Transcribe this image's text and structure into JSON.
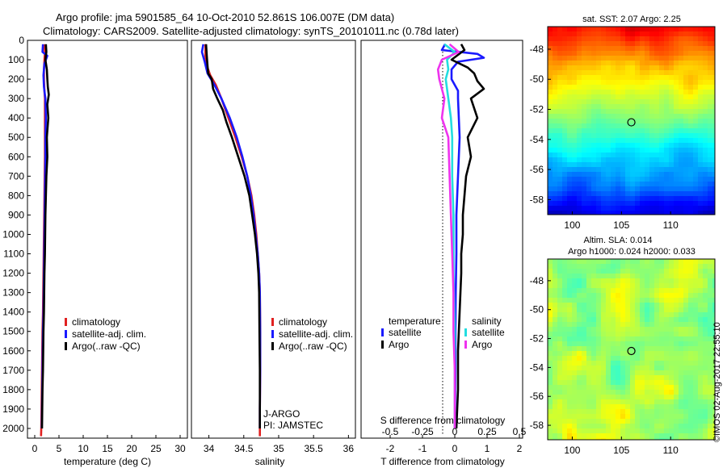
{
  "header": {
    "title_line1": "Argo profile: jma 5901585_64 10-Oct-2010 52.861S 106.007E (DM data)",
    "title_line2": "Climatology: CARS2009. Satellite-adjusted climatology: synTS_20101011.nc (0.78d later)"
  },
  "colors": {
    "climatology": "#e02020",
    "satellite": "#1a1aff",
    "argo": "#000000",
    "salinity_satellite": "#22dde0",
    "salinity_argo": "#ee33ee"
  },
  "depth_axis": {
    "range": [
      0,
      2050
    ],
    "ticks": [
      "0",
      "100",
      "200",
      "300",
      "400",
      "500",
      "600",
      "700",
      "800",
      "900",
      "1000",
      "1100",
      "1200",
      "1300",
      "1400",
      "1500",
      "1600",
      "1700",
      "1800",
      "1900",
      "2000"
    ]
  },
  "chart_data": [
    {
      "type": "line",
      "name": "temperature",
      "xlabel": "temperature (deg C)",
      "xlim": [
        -1.5,
        31.5
      ],
      "xticks": [
        "0",
        "5",
        "10",
        "15",
        "20",
        "25",
        "30"
      ],
      "legend": [
        "climatology",
        "satellite-adj. clim.",
        "Argo(..raw -QC)"
      ],
      "series": [
        {
          "name": "climatology",
          "color": "#e02020",
          "points": [
            [
              2.0,
              20
            ],
            [
              2.1,
              60
            ],
            [
              2.0,
              100
            ],
            [
              1.9,
              150
            ],
            [
              1.9,
              200
            ],
            [
              2.0,
              260
            ],
            [
              2.1,
              300
            ],
            [
              2.1,
              400
            ],
            [
              2.1,
              500
            ],
            [
              2.1,
              600
            ],
            [
              2.05,
              700
            ],
            [
              2.0,
              800
            ],
            [
              1.95,
              900
            ],
            [
              1.9,
              1000
            ],
            [
              1.85,
              1100
            ],
            [
              1.8,
              1200
            ],
            [
              1.75,
              1300
            ],
            [
              1.7,
              1400
            ],
            [
              1.6,
              1500
            ],
            [
              1.55,
              1600
            ],
            [
              1.5,
              1700
            ],
            [
              1.45,
              1800
            ],
            [
              1.4,
              1900
            ],
            [
              1.35,
              2000
            ],
            [
              1.3,
              2040
            ]
          ]
        },
        {
          "name": "satellite-adj. clim.",
          "color": "#1a1aff",
          "points": [
            [
              1.7,
              20
            ],
            [
              1.6,
              60
            ],
            [
              2.6,
              80
            ],
            [
              2.0,
              120
            ],
            [
              1.8,
              180
            ],
            [
              1.9,
              240
            ],
            [
              2.2,
              300
            ],
            [
              2.3,
              400
            ],
            [
              2.2,
              500
            ],
            [
              2.2,
              600
            ],
            [
              2.15,
              700
            ],
            [
              2.1,
              800
            ],
            [
              2.05,
              900
            ],
            [
              2.0,
              1000
            ],
            [
              1.95,
              1100
            ],
            [
              1.9,
              1200
            ],
            [
              1.85,
              1300
            ],
            [
              1.8,
              1400
            ],
            [
              1.7,
              1500
            ],
            [
              1.65,
              1600
            ],
            [
              1.6,
              1700
            ],
            [
              1.55,
              1800
            ],
            [
              1.5,
              1900
            ],
            [
              1.45,
              2000
            ]
          ]
        },
        {
          "name": "Argo(..raw -QC)",
          "color": "#000000",
          "points": [
            [
              2.3,
              20
            ],
            [
              2.4,
              60
            ],
            [
              2.2,
              100
            ],
            [
              2.5,
              150
            ],
            [
              2.6,
              200
            ],
            [
              2.7,
              240
            ],
            [
              2.9,
              280
            ],
            [
              2.6,
              330
            ],
            [
              2.8,
              400
            ],
            [
              2.5,
              500
            ],
            [
              2.6,
              600
            ],
            [
              2.4,
              700
            ],
            [
              2.3,
              800
            ],
            [
              2.2,
              900
            ],
            [
              2.15,
              1000
            ],
            [
              2.1,
              1100
            ],
            [
              2.0,
              1200
            ],
            [
              1.95,
              1300
            ],
            [
              1.9,
              1400
            ],
            [
              1.8,
              1500
            ],
            [
              1.75,
              1600
            ],
            [
              1.7,
              1700
            ],
            [
              1.6,
              1800
            ],
            [
              1.55,
              1900
            ],
            [
              1.5,
              2000
            ]
          ]
        }
      ]
    },
    {
      "type": "line",
      "name": "salinity",
      "xlabel": "salinity",
      "xlim": [
        33.75,
        36.1
      ],
      "xticks": [
        "34",
        "34.5",
        "35",
        "35.5",
        "36"
      ],
      "legend": [
        "climatology",
        "satellite-adj. clim.",
        "Argo(..raw -QC)"
      ],
      "annotation": [
        "J-ARGO",
        "PI: JAMSTEC"
      ],
      "series": [
        {
          "name": "climatology",
          "color": "#e02020",
          "points": [
            [
              33.95,
              20
            ],
            [
              33.95,
              80
            ],
            [
              33.97,
              130
            ],
            [
              34.02,
              180
            ],
            [
              34.1,
              230
            ],
            [
              34.18,
              300
            ],
            [
              34.28,
              400
            ],
            [
              34.38,
              500
            ],
            [
              34.47,
              600
            ],
            [
              34.55,
              700
            ],
            [
              34.61,
              800
            ],
            [
              34.65,
              900
            ],
            [
              34.68,
              1000
            ],
            [
              34.7,
              1100
            ],
            [
              34.72,
              1200
            ],
            [
              34.73,
              1300
            ],
            [
              34.735,
              1500
            ],
            [
              34.735,
              1700
            ],
            [
              34.73,
              1900
            ],
            [
              34.73,
              2040
            ]
          ]
        },
        {
          "name": "satellite-adj. clim.",
          "color": "#1a1aff",
          "points": [
            [
              33.92,
              20
            ],
            [
              33.9,
              60
            ],
            [
              33.94,
              110
            ],
            [
              33.98,
              170
            ],
            [
              34.08,
              230
            ],
            [
              34.18,
              300
            ],
            [
              34.3,
              400
            ],
            [
              34.4,
              500
            ],
            [
              34.48,
              600
            ],
            [
              34.55,
              700
            ],
            [
              34.6,
              800
            ],
            [
              34.64,
              900
            ],
            [
              34.67,
              1000
            ],
            [
              34.7,
              1100
            ],
            [
              34.72,
              1200
            ],
            [
              34.73,
              1300
            ],
            [
              34.735,
              1500
            ],
            [
              34.735,
              1700
            ],
            [
              34.73,
              1900
            ],
            [
              34.73,
              2000
            ]
          ]
        },
        {
          "name": "Argo(..raw -QC)",
          "color": "#000000",
          "points": [
            [
              33.96,
              20
            ],
            [
              33.97,
              80
            ],
            [
              33.98,
              130
            ],
            [
              33.99,
              170
            ],
            [
              34.04,
              200
            ],
            [
              34.06,
              250
            ],
            [
              34.12,
              300
            ],
            [
              34.2,
              360
            ],
            [
              34.25,
              420
            ],
            [
              34.33,
              500
            ],
            [
              34.42,
              600
            ],
            [
              34.51,
              700
            ],
            [
              34.58,
              800
            ],
            [
              34.62,
              900
            ],
            [
              34.66,
              1000
            ],
            [
              34.69,
              1100
            ],
            [
              34.71,
              1200
            ],
            [
              34.72,
              1300
            ],
            [
              34.725,
              1500
            ],
            [
              34.73,
              1700
            ],
            [
              34.73,
              1900
            ],
            [
              34.73,
              2000
            ]
          ]
        }
      ]
    },
    {
      "type": "line",
      "name": "difference",
      "xlabel": "T difference from climatology",
      "xlabel_top": "S difference from climatology",
      "xlim": [
        -2.9,
        2.1
      ],
      "xticks": [
        "-2",
        "-1",
        "0",
        "1",
        "2"
      ],
      "xticks_top": [
        "-0.5",
        "-0.25",
        "0",
        "0.25",
        "0.5"
      ],
      "legend_titles": [
        "temperature",
        "salinity"
      ],
      "legend": [
        "satellite",
        "Argo",
        "satellite",
        "Argo"
      ],
      "series": [
        {
          "name": "T satellite",
          "color": "#1a1aff",
          "points": [
            [
              -0.3,
              20
            ],
            [
              -0.4,
              50
            ],
            [
              0.7,
              70
            ],
            [
              0.9,
              90
            ],
            [
              0.1,
              110
            ],
            [
              -0.1,
              150
            ],
            [
              -0.1,
              200
            ],
            [
              0.1,
              260
            ],
            [
              0.1,
              300
            ],
            [
              0.15,
              500
            ],
            [
              0.1,
              700
            ],
            [
              0.05,
              900
            ],
            [
              0.05,
              1100
            ],
            [
              0.03,
              1300
            ],
            [
              0.02,
              1500
            ],
            [
              0.02,
              1700
            ],
            [
              0.01,
              1900
            ],
            [
              0.0,
              2000
            ]
          ]
        },
        {
          "name": "T Argo",
          "color": "#000000",
          "points": [
            [
              0.2,
              20
            ],
            [
              0.3,
              50
            ],
            [
              -0.1,
              100
            ],
            [
              0.4,
              140
            ],
            [
              0.6,
              170
            ],
            [
              0.7,
              210
            ],
            [
              0.9,
              250
            ],
            [
              0.5,
              300
            ],
            [
              0.7,
              400
            ],
            [
              0.4,
              500
            ],
            [
              0.5,
              600
            ],
            [
              0.35,
              700
            ],
            [
              0.3,
              800
            ],
            [
              0.25,
              900
            ],
            [
              0.25,
              1000
            ],
            [
              0.2,
              1100
            ],
            [
              0.2,
              1200
            ],
            [
              0.15,
              1400
            ],
            [
              0.1,
              1600
            ],
            [
              0.1,
              1800
            ],
            [
              0.05,
              2000
            ]
          ]
        },
        {
          "name": "S satellite",
          "color": "#22dde0",
          "points": [
            [
              -0.08,
              20
            ],
            [
              0.0,
              60
            ],
            [
              -0.06,
              100
            ],
            [
              -0.05,
              150
            ],
            [
              -0.07,
              200
            ],
            [
              -0.05,
              300
            ],
            [
              -0.03,
              400
            ],
            [
              -0.02,
              500
            ],
            [
              -0.02,
              700
            ],
            [
              -0.01,
              900
            ],
            [
              -0.01,
              1200
            ],
            [
              0.0,
              1500
            ],
            [
              0.0,
              1800
            ],
            [
              0.0,
              2000
            ]
          ]
        },
        {
          "name": "S Argo",
          "color": "#ee33ee",
          "points": [
            [
              -0.04,
              20
            ],
            [
              0.03,
              60
            ],
            [
              -0.1,
              100
            ],
            [
              -0.13,
              150
            ],
            [
              -0.12,
              200
            ],
            [
              -0.08,
              300
            ],
            [
              -0.1,
              400
            ],
            [
              -0.05,
              500
            ],
            [
              -0.04,
              700
            ],
            [
              -0.03,
              900
            ],
            [
              -0.02,
              1100
            ],
            [
              -0.01,
              1300
            ],
            [
              -0.01,
              1500
            ],
            [
              0.0,
              1700
            ],
            [
              0.0,
              2000
            ]
          ]
        }
      ]
    },
    {
      "type": "heatmap",
      "name": "sst-map",
      "title": "sat. SST: 2.07 Argo: 2.25",
      "xlim": [
        97.5,
        114.5
      ],
      "ylim": [
        -59,
        -46.5
      ],
      "xticks": [
        "100",
        "105",
        "110"
      ],
      "yticks": [
        "-48",
        "-50",
        "-52",
        "-54",
        "-56",
        "-58"
      ],
      "marker": [
        106.007,
        -52.861
      ]
    },
    {
      "type": "heatmap",
      "name": "sla-map",
      "title_line1": "Altim. SLA: 0.014",
      "title_line2": "Argo h1000: 0.024 h2000: 0.033",
      "xlim": [
        97.5,
        114.5
      ],
      "ylim": [
        -59,
        -46.5
      ],
      "xticks": [
        "100",
        "105",
        "110"
      ],
      "yticks": [
        "-48",
        "-50",
        "-52",
        "-54",
        "-56",
        "-58"
      ],
      "marker": [
        106.007,
        -52.861
      ]
    }
  ],
  "footer": {
    "stamp": "©IMOS 02-Aug-2017 22:55:10"
  }
}
